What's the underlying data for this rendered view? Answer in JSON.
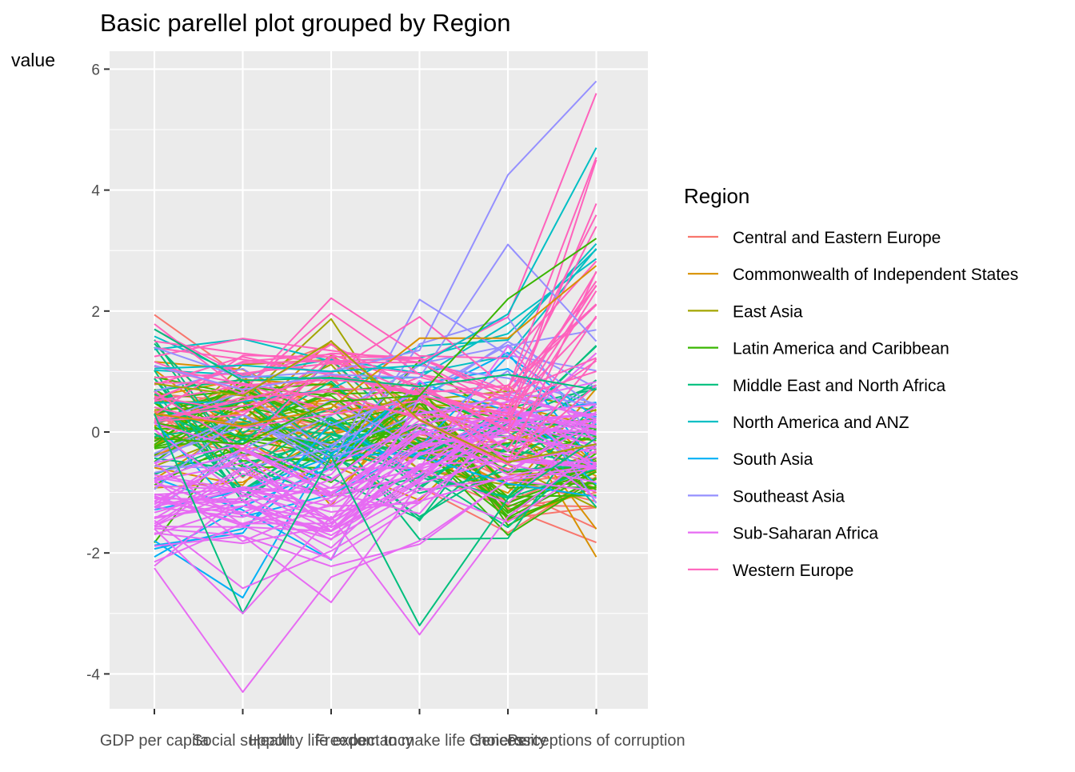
{
  "chart_data": {
    "type": "line",
    "subtype": "parallel-coordinates",
    "title": "Basic parellel plot grouped by Region",
    "xlabel": "",
    "ylabel": "value",
    "ylim": [
      -4.8,
      6.2
    ],
    "yticks": [
      -4,
      -2,
      0,
      2,
      4,
      6
    ],
    "ytick_labels": [
      "-4",
      "-2",
      "0",
      "2",
      "4",
      "6"
    ],
    "categories": [
      "GDP per capita",
      "Social support",
      "Healthy life expectancy",
      "Freedom to make life choices",
      "Generosity",
      "Perceptions of corruption"
    ],
    "grid": true,
    "legend": {
      "title": "Region",
      "position": "right"
    },
    "series": [
      {
        "name": "Central and Eastern Europe",
        "color": "#F8766D"
      },
      {
        "name": "Commonwealth of Independent States",
        "color": "#D89000"
      },
      {
        "name": "East Asia",
        "color": "#A3A500"
      },
      {
        "name": "Latin America and Caribbean",
        "color": "#39B600"
      },
      {
        "name": "Middle East and North Africa",
        "color": "#00BF7D"
      },
      {
        "name": "North America and ANZ",
        "color": "#00BFC4"
      },
      {
        "name": "South Asia",
        "color": "#00B0F6"
      },
      {
        "name": "Southeast Asia",
        "color": "#9590FF"
      },
      {
        "name": "Sub-Saharan Africa",
        "color": "#E76BF3"
      },
      {
        "name": "Western Europe",
        "color": "#FF62BC"
      }
    ],
    "highlighted_lines": [
      {
        "region": "Southeast Asia",
        "values": [
          1.4,
          0.9,
          1.0,
          1.35,
          4.25,
          5.8
        ]
      },
      {
        "region": "Southeast Asia",
        "values": [
          1.1,
          0.7,
          0.95,
          0.9,
          3.1,
          1.5
        ]
      },
      {
        "region": "Sub-Saharan Africa",
        "values": [
          -2.25,
          -4.3,
          -2.4,
          -1.8,
          -0.8,
          -0.6
        ]
      },
      {
        "region": "Commonwealth of Independent States",
        "values": [
          0.3,
          0.1,
          0.4,
          1.55,
          1.55,
          2.75
        ]
      },
      {
        "region": "Western Europe",
        "values": [
          1.5,
          1.3,
          1.15,
          1.15,
          1.9,
          5.6
        ]
      },
      {
        "region": "North America and ANZ",
        "values": [
          1.05,
          1.1,
          1.0,
          1.1,
          1.95,
          4.7
        ]
      },
      {
        "region": "Middle East and North Africa",
        "values": [
          1.7,
          0.85,
          0.9,
          0.75,
          0.95,
          0.7
        ]
      },
      {
        "region": "Latin America and Caribbean",
        "values": [
          -0.1,
          -0.2,
          0.5,
          0.6,
          2.2,
          3.2
        ]
      },
      {
        "region": "Middle East and North Africa",
        "values": [
          0.3,
          -3.0,
          -0.4,
          -3.2,
          -1.1,
          -0.1
        ]
      },
      {
        "region": "Sub-Saharan Africa",
        "values": [
          -1.6,
          -3.0,
          -1.4,
          -3.35,
          -1.4,
          -0.3
        ]
      },
      {
        "region": "East Asia",
        "values": [
          0.8,
          0.6,
          1.5,
          0.2,
          -0.5,
          -0.2
        ]
      }
    ]
  }
}
